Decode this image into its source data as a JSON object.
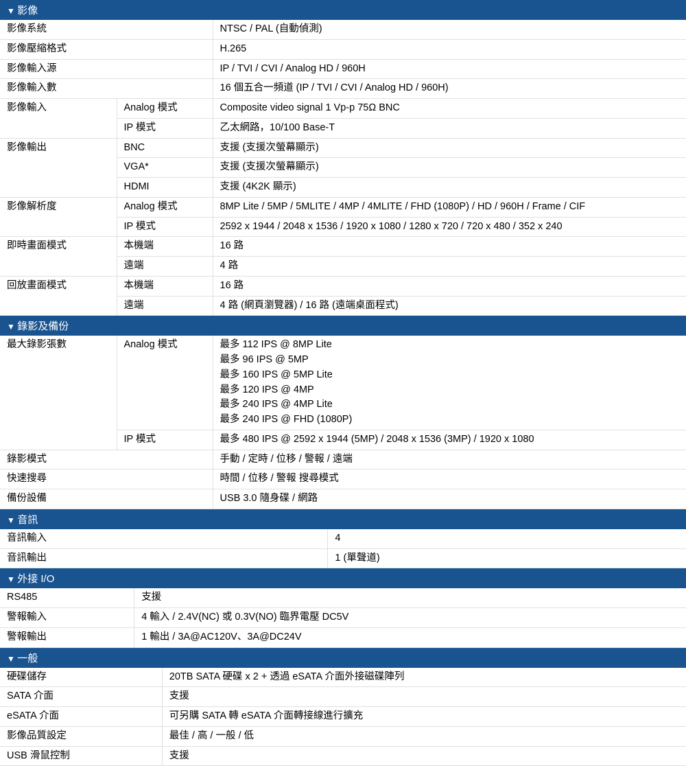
{
  "colors": {
    "header_bg": "#1a5490",
    "header_fg": "#ffffff",
    "border": "#e0e0e0",
    "text": "#000000"
  },
  "sections": {
    "video": {
      "title": "影像",
      "rows": [
        {
          "k": "影像系統",
          "v": "NTSC / PAL (自動偵測)"
        },
        {
          "k": "影像壓縮格式",
          "v": "H.265"
        },
        {
          "k": "影像輸入源",
          "v": "IP / TVI / CVI / Analog HD / 960H"
        },
        {
          "k": "影像輸入數",
          "v": "16 個五合一頻道  (IP / TVI / CVI / Analog HD / 960H)"
        }
      ],
      "groups": [
        {
          "k": "影像輸入",
          "sub": [
            {
              "k": "Analog 模式",
              "v": "Composite video signal 1 Vp-p 75Ω BNC"
            },
            {
              "k": "IP 模式",
              "v": "乙太網路，10/100 Base-T"
            }
          ]
        },
        {
          "k": "影像輸出",
          "sub": [
            {
              "k": "BNC",
              "v": "支援  (支援次螢幕顯示)"
            },
            {
              "k": "VGA*",
              "v": "支援  (支援次螢幕顯示)"
            },
            {
              "k": "HDMI",
              "v": "支援  (4K2K 顯示)"
            }
          ]
        },
        {
          "k": "影像解析度",
          "sub": [
            {
              "k": "Analog 模式",
              "v": "8MP Lite / 5MP / 5MLITE / 4MP / 4MLITE / FHD (1080P) / HD / 960H / Frame / CIF"
            },
            {
              "k": "IP 模式",
              "v": "2592 x 1944 / 2048 x 1536 / 1920 x 1080 / 1280 x 720 / 720 x 480 / 352 x 240"
            }
          ]
        },
        {
          "k": "即時畫面模式",
          "sub": [
            {
              "k": "本機端",
              "v": "16 路"
            },
            {
              "k": "遠端",
              "v": "4 路"
            }
          ]
        },
        {
          "k": "回放畫面模式",
          "sub": [
            {
              "k": "本機端",
              "v": "16 路"
            },
            {
              "k": "遠端",
              "v": "4 路  (網頁瀏覽器) / 16 路  (遠端桌面程式)"
            }
          ]
        }
      ]
    },
    "record": {
      "title": "錄影及備份",
      "groups": [
        {
          "k": "最大錄影張數",
          "sub": [
            {
              "k": "Analog 模式",
              "v": "最多 112 IPS @ 8MP Lite\n最多 96 IPS @ 5MP\n最多 160 IPS @ 5MP Lite\n最多 120 IPS @ 4MP\n最多 240 IPS @ 4MP Lite\n最多 240 IPS @ FHD (1080P)"
            },
            {
              "k": "IP 模式",
              "v": "最多 480 IPS @ 2592 x 1944 (5MP) / 2048 x 1536 (3MP) / 1920 x 1080"
            }
          ]
        }
      ],
      "rows": [
        {
          "k": "錄影模式",
          "v": "手動  /  定時  /  位移  /  警報  /  遠端"
        },
        {
          "k": "快速搜尋",
          "v": "時間  /  位移  /  警報  搜尋模式"
        },
        {
          "k": "備份設備",
          "v": "USB 3.0 隨身碟  /  網路"
        }
      ]
    },
    "audio": {
      "title": "音訊",
      "rows": [
        {
          "k": "音訊輸入",
          "v": "4"
        },
        {
          "k": "音訊輸出",
          "v": "1 (單聲道)"
        }
      ]
    },
    "io": {
      "title": "外接 I/O",
      "rows": [
        {
          "k": "RS485",
          "v": "支援"
        },
        {
          "k": "警報輸入",
          "v": "4 輸入  / 2.4V(NC)  或 0.3V(NO)  臨界電壓 DC5V"
        },
        {
          "k": "警報輸出",
          "v": "1 輸出  / 3A@AC120V、3A@DC24V"
        }
      ]
    },
    "general": {
      "title": "一般",
      "rows": [
        {
          "k": "硬碟儲存",
          "v": "20TB SATA 硬碟  x 2 +  透過 eSATA 介面外接磁碟陣列"
        },
        {
          "k": "SATA 介面",
          "v": "支援"
        },
        {
          "k": "eSATA 介面",
          "v": "可另購 SATA 轉 eSATA 介面轉接線進行擴充"
        },
        {
          "k": "影像品質設定",
          "v": "最佳  /  高  /  一般  /  低"
        },
        {
          "k": "USB 滑鼠控制",
          "v": "支援"
        }
      ]
    }
  }
}
